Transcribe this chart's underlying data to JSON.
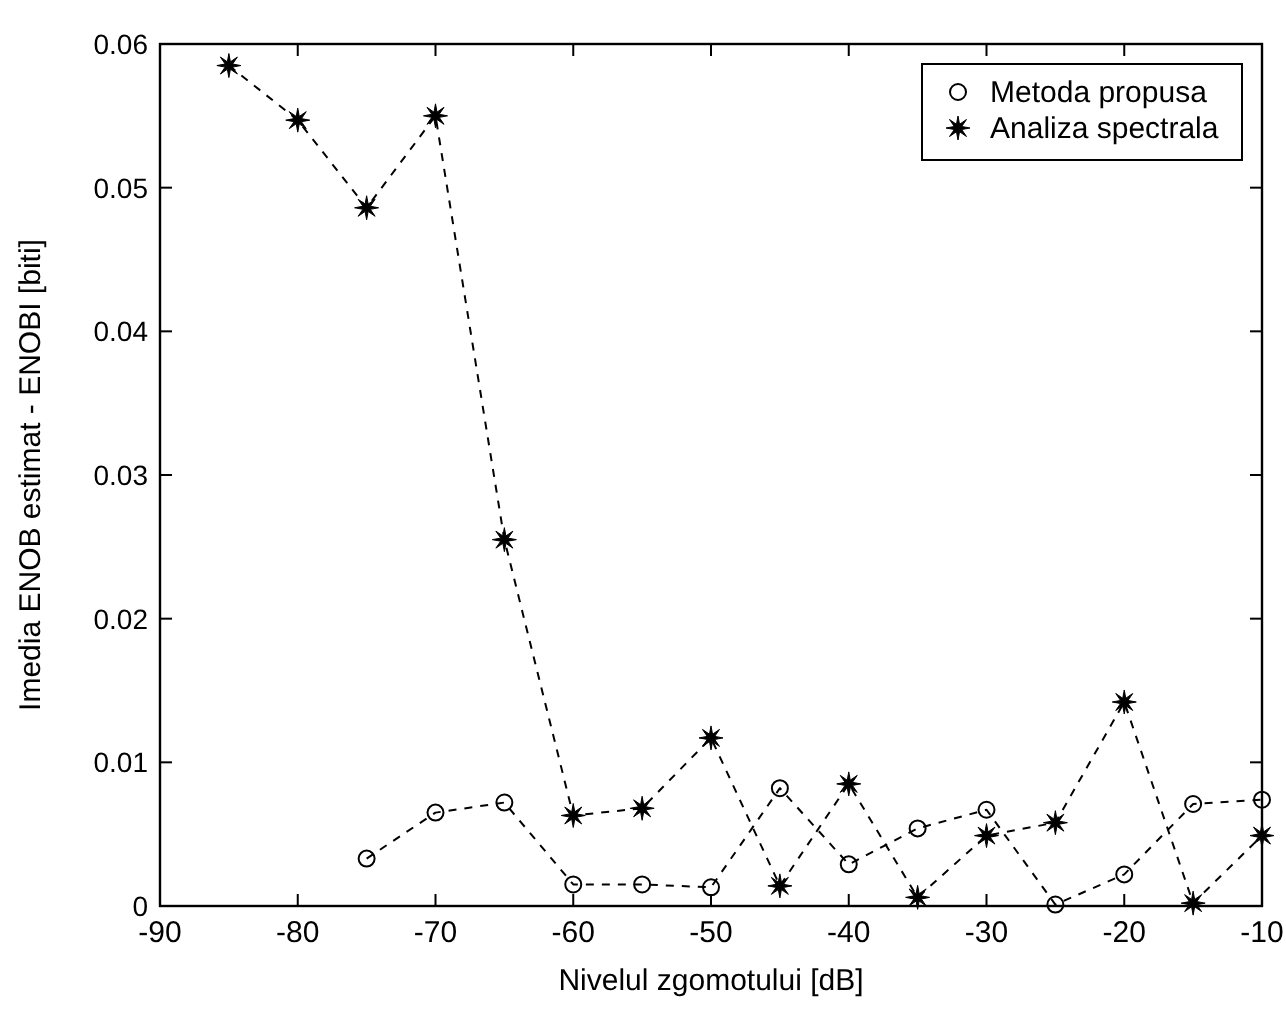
{
  "chart_data": {
    "type": "line",
    "xlabel": "Nivelul zgomotului [dB]",
    "ylabel": "Imedia ENOB estimat - ENOBI [biti]",
    "x": [
      -85,
      -80,
      -75,
      -70,
      -65,
      -60,
      -55,
      -50,
      -45,
      -40,
      -35,
      -30,
      -25,
      -20,
      -15,
      -10
    ],
    "series": [
      {
        "name": "Metoda propusa",
        "color": "#000000",
        "marker": "circle",
        "line_style": "dashed",
        "values": [
          null,
          null,
          0.0033,
          0.0065,
          0.0072,
          0.0015,
          0.0015,
          0.0013,
          0.0082,
          0.0029,
          0.0054,
          0.0067,
          0.0001,
          0.0022,
          0.0071,
          0.0074
        ]
      },
      {
        "name": "Analiza spectrala",
        "color": "#000000",
        "marker": "star",
        "line_style": "dashed",
        "values": [
          0.0585,
          0.0547,
          0.0486,
          0.055,
          0.0255,
          0.0063,
          0.0068,
          0.0117,
          0.0014,
          0.0085,
          0.0006,
          0.0049,
          0.0058,
          0.0142,
          0.0002,
          0.0049
        ]
      }
    ],
    "xlim": [
      -90,
      -10
    ],
    "xticks": [
      -90,
      -80,
      -70,
      -60,
      -50,
      -40,
      -30,
      -20,
      -10
    ],
    "ylim": [
      0,
      0.06
    ],
    "yticks": [
      0,
      0.01,
      0.02,
      0.03,
      0.04,
      0.05,
      0.06
    ],
    "grid": false,
    "legend": "top right"
  }
}
